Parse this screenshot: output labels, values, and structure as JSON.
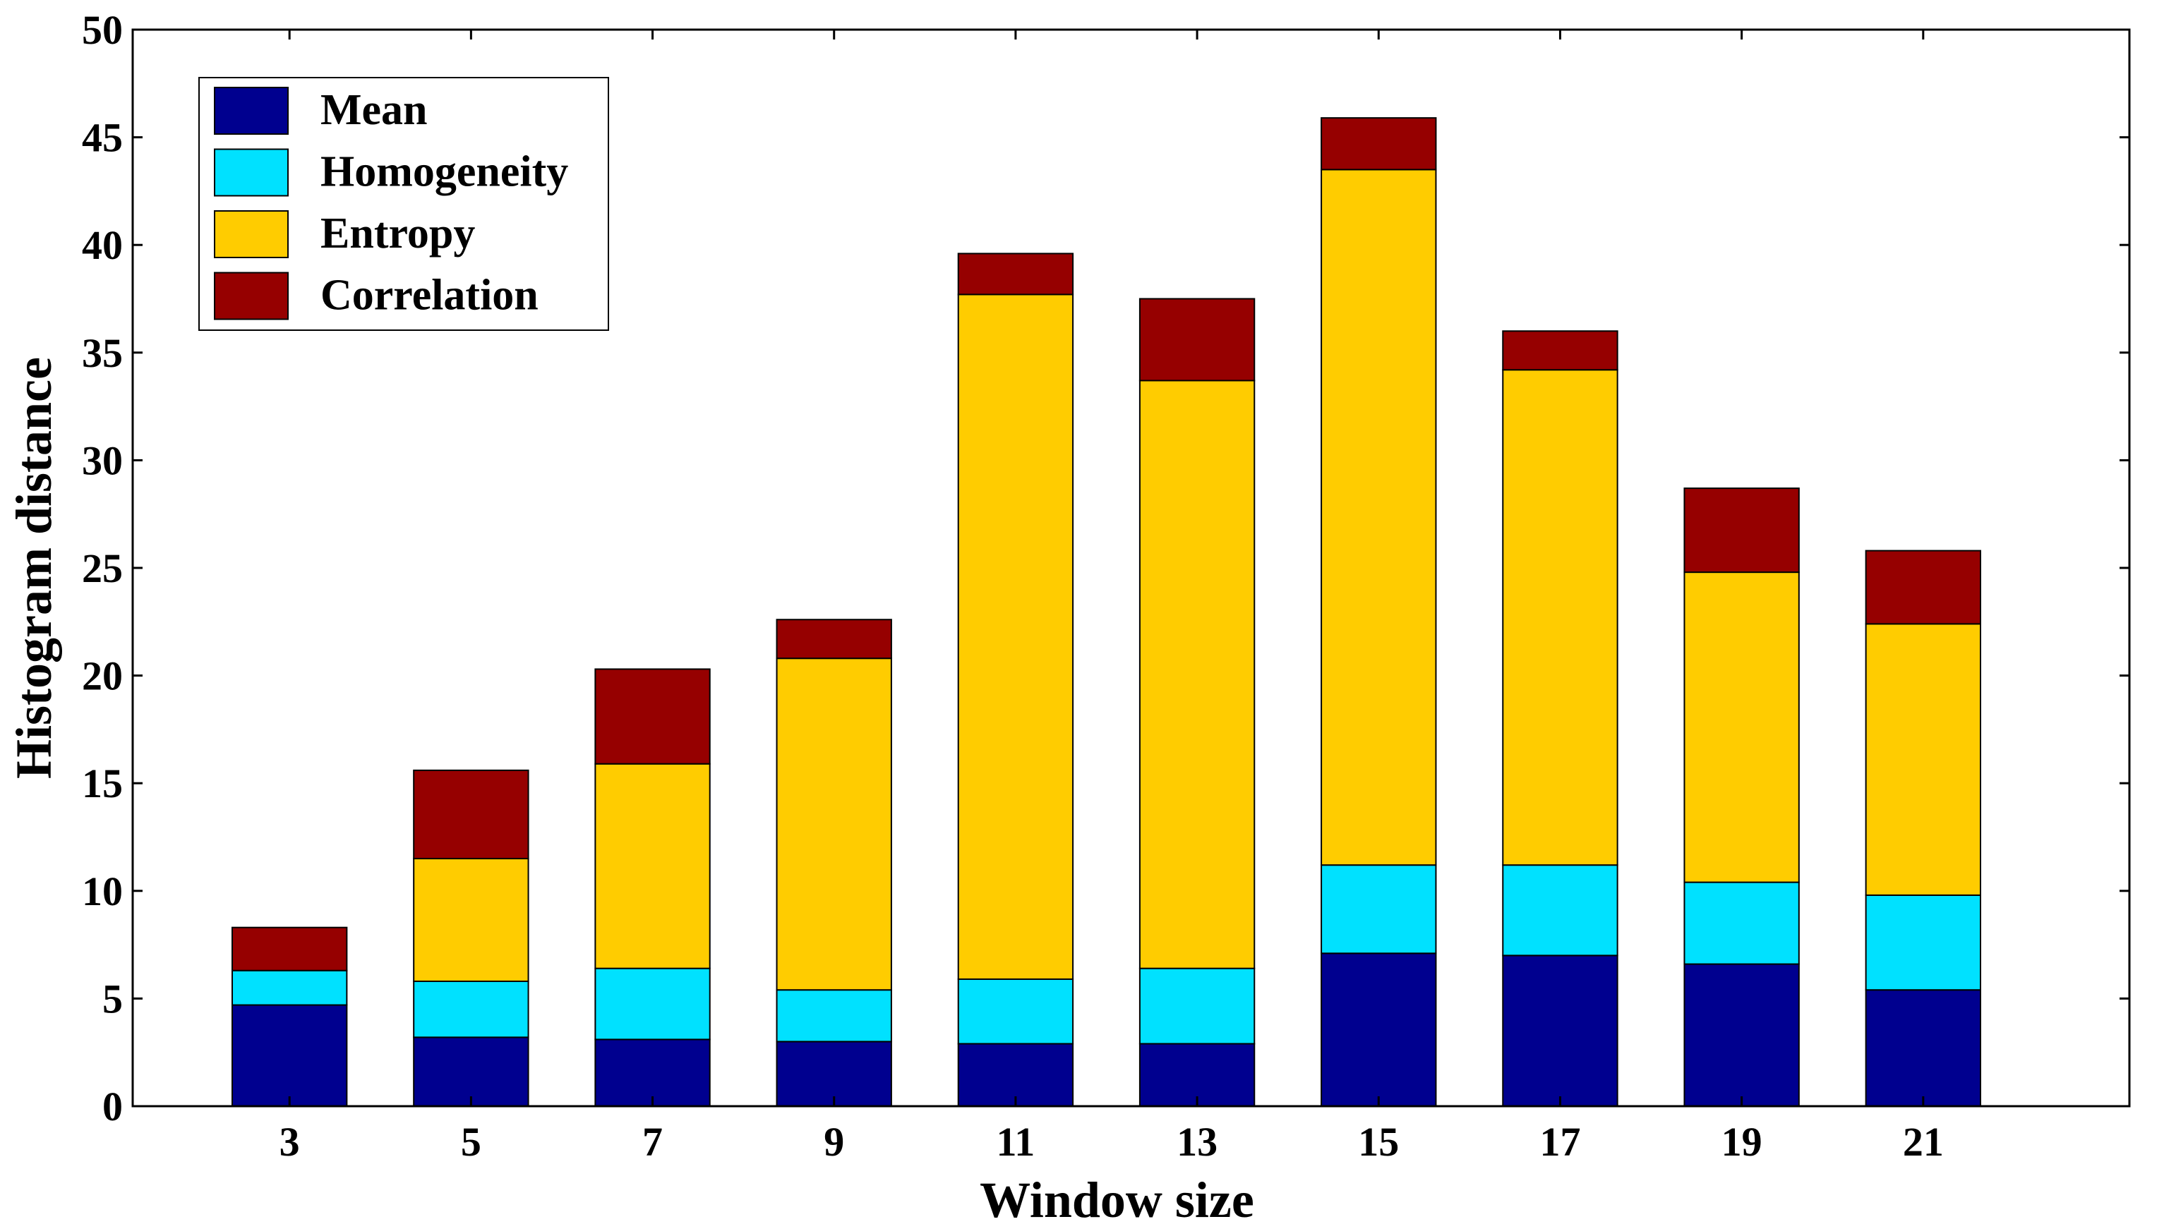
{
  "chart_data": {
    "type": "bar",
    "stacked": true,
    "title": "",
    "xlabel": "Window size",
    "ylabel": "Histogram distance",
    "categories": [
      "3",
      "5",
      "7",
      "9",
      "11",
      "13",
      "15",
      "17",
      "19",
      "21"
    ],
    "ylim": [
      0,
      50
    ],
    "yticks": [
      0,
      5,
      10,
      15,
      20,
      25,
      30,
      35,
      40,
      45,
      50
    ],
    "grid": false,
    "legend_position": "top-left",
    "series": [
      {
        "name": "Mean",
        "color": "#00008f",
        "values": [
          4.7,
          3.2,
          3.1,
          3.0,
          2.9,
          2.9,
          7.1,
          7.0,
          6.6,
          5.4
        ]
      },
      {
        "name": "Homogeneity",
        "color": "#00e1ff",
        "values": [
          1.6,
          2.6,
          3.3,
          2.4,
          3.0,
          3.5,
          4.1,
          4.2,
          3.8,
          4.4
        ]
      },
      {
        "name": "Entropy",
        "color": "#ffcc00",
        "values": [
          0.0,
          5.7,
          9.5,
          15.4,
          31.8,
          27.3,
          32.3,
          23.0,
          14.4,
          12.6
        ]
      },
      {
        "name": "Correlation",
        "color": "#960000",
        "values": [
          2.0,
          4.1,
          4.4,
          1.8,
          1.9,
          3.8,
          2.4,
          1.8,
          3.9,
          3.4
        ]
      }
    ]
  }
}
